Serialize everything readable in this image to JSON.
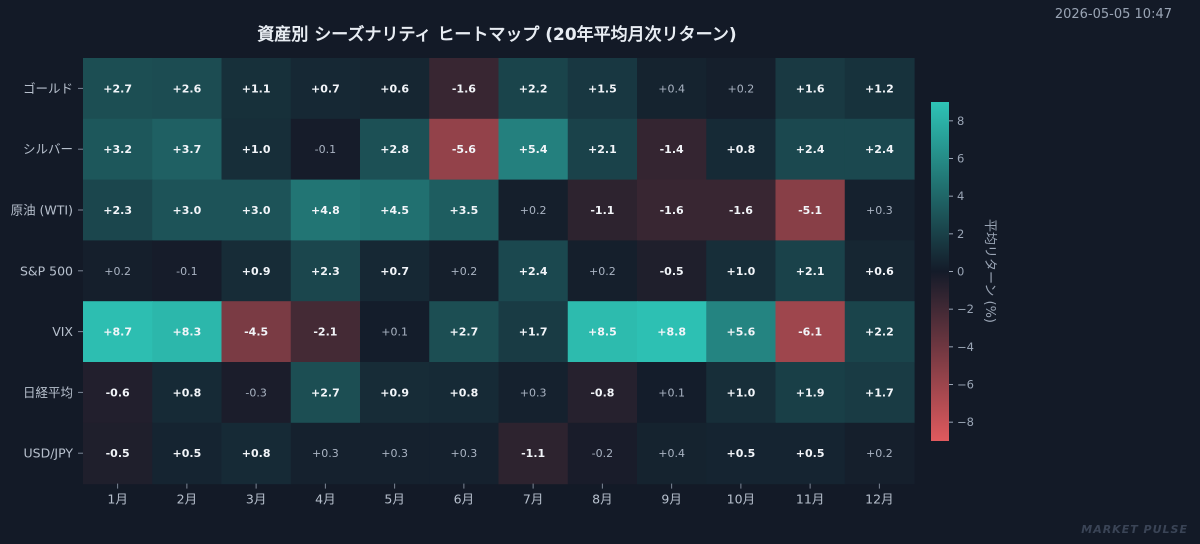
{
  "timestamp": "2026-05-05 10:47",
  "watermark": "MARKET PULSE",
  "colors": {
    "background": "#131a27",
    "positive_max": "#2ec4b6",
    "neutral": "#141b29",
    "negative_max": "#e05a5e"
  },
  "chart_data": {
    "type": "heatmap",
    "title": "資産別 シーズナリティ ヒートマップ (20年平均月次リターン)",
    "x_categories": [
      "1月",
      "2月",
      "3月",
      "4月",
      "5月",
      "6月",
      "7月",
      "8月",
      "9月",
      "10月",
      "11月",
      "12月"
    ],
    "y_categories": [
      "ゴールド",
      "シルバー",
      "原油 (WTI)",
      "S&P 500",
      "VIX",
      "日経平均",
      "USD/JPY"
    ],
    "values": [
      [
        2.7,
        2.6,
        1.1,
        0.7,
        0.6,
        -1.6,
        2.2,
        1.5,
        0.4,
        0.2,
        1.6,
        1.2
      ],
      [
        3.2,
        3.7,
        1.0,
        -0.1,
        2.8,
        -5.6,
        5.4,
        2.1,
        -1.4,
        0.8,
        2.4,
        2.4
      ],
      [
        2.3,
        3.0,
        3.0,
        4.8,
        4.5,
        3.5,
        0.2,
        -1.1,
        -1.6,
        -1.6,
        -5.1,
        0.3
      ],
      [
        0.2,
        -0.1,
        0.9,
        2.3,
        0.7,
        0.2,
        2.4,
        0.2,
        -0.5,
        1.0,
        2.1,
        0.6
      ],
      [
        8.7,
        8.3,
        -4.5,
        -2.1,
        0.1,
        2.7,
        1.7,
        8.5,
        8.8,
        5.6,
        -6.1,
        2.2
      ],
      [
        -0.6,
        0.8,
        -0.3,
        2.7,
        0.9,
        0.8,
        0.3,
        -0.8,
        0.1,
        1.0,
        1.9,
        1.7
      ],
      [
        -0.5,
        0.5,
        0.8,
        0.3,
        0.3,
        0.3,
        -1.1,
        -0.2,
        0.4,
        0.5,
        0.5,
        0.2
      ]
    ],
    "colorbar": {
      "label": "平均リターン (%)",
      "range": [
        -9,
        9
      ],
      "ticks": [
        8,
        6,
        4,
        2,
        0,
        -2,
        -4,
        -6,
        -8
      ]
    }
  }
}
